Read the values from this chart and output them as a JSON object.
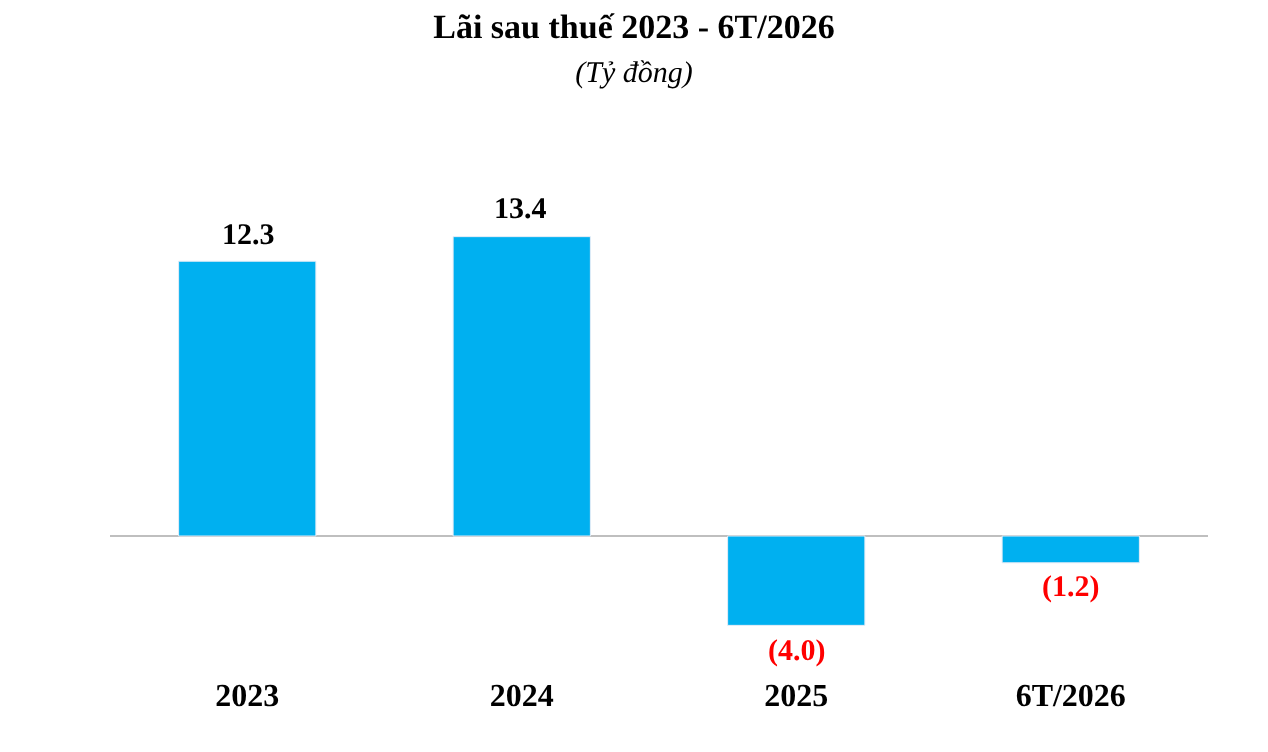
{
  "chart_data": {
    "type": "bar",
    "title": "Lãi sau thuế 2023 - 6T/2026",
    "subtitle": "(Tỷ đồng)",
    "categories": [
      "2023",
      "2024",
      "2025",
      "6T/2026"
    ],
    "values": [
      12.3,
      13.4,
      -4.0,
      -1.2
    ],
    "color": "#00b0f0",
    "value_labels": [
      "12.3",
      "13.4",
      "(4.0)",
      "(1.2)"
    ],
    "legend": false
  }
}
